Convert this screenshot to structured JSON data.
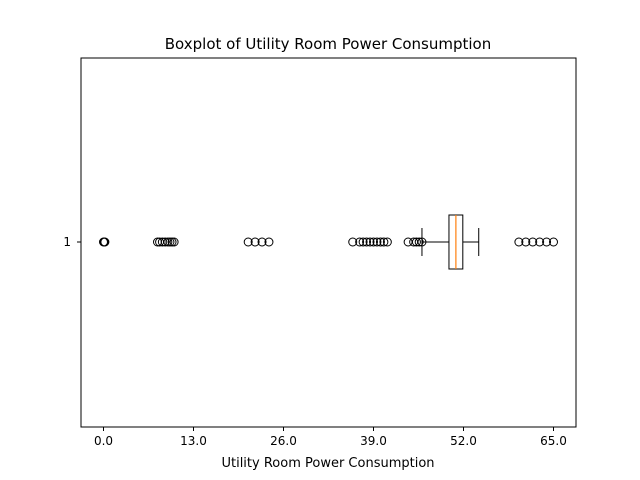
{
  "chart_data": {
    "type": "boxplot",
    "orientation": "horizontal",
    "title": "Boxplot of Utility Room Power Consumption",
    "xlabel": "Utility Room Power Consumption",
    "ylabel": "",
    "xlim": [
      -3.25,
      68.25
    ],
    "xticks": [
      0.0,
      13.0,
      26.0,
      39.0,
      52.0,
      65.0
    ],
    "xtick_labels": [
      "0.0",
      "13.0",
      "26.0",
      "39.0",
      "52.0",
      "65.0"
    ],
    "categories": [
      "1"
    ],
    "grid": false,
    "box": {
      "label": "1",
      "whisker_low": 46.0,
      "q1": 49.9,
      "median": 50.9,
      "q3": 51.9,
      "whisker_high": 54.2
    },
    "outliers": [
      0.0,
      0.1,
      0.2,
      7.8,
      8.1,
      8.5,
      8.9,
      9.3,
      9.6,
      9.9,
      10.2,
      20.9,
      21.9,
      22.9,
      23.9,
      36.0,
      37.0,
      37.5,
      38.0,
      38.5,
      39.0,
      39.5,
      40.0,
      40.5,
      41.0,
      44.0,
      44.8,
      45.2,
      45.6,
      46.0,
      60.0,
      61.0,
      62.0,
      63.0,
      64.0,
      65.0
    ],
    "colors": {
      "box": "#000000",
      "median": "#ff7f0e",
      "outlier": "#000000",
      "background": "#ffffff"
    }
  }
}
